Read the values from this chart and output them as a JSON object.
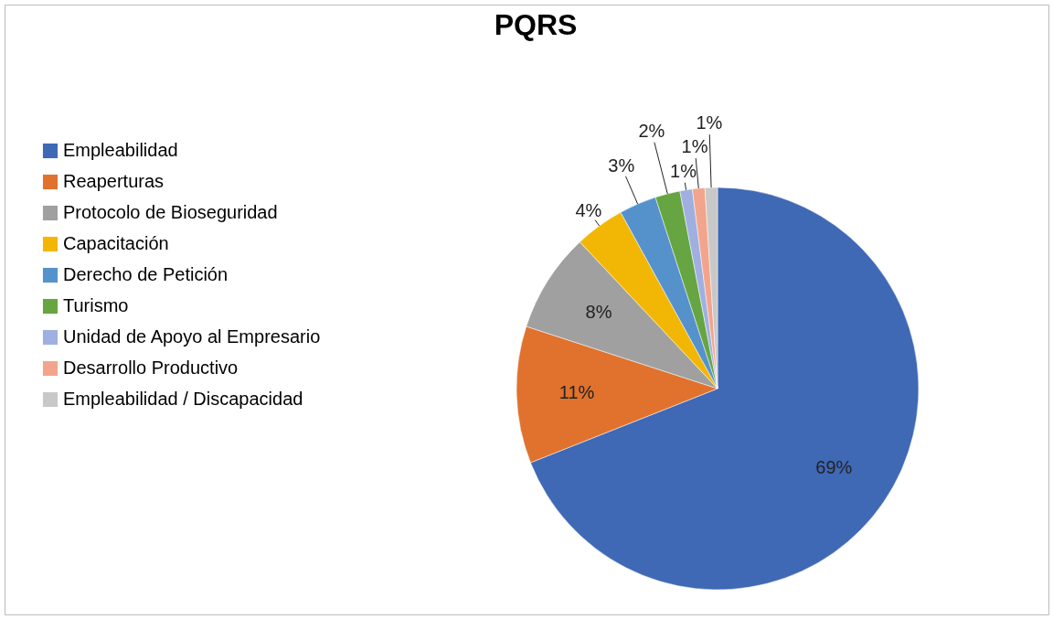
{
  "chart_data": {
    "type": "pie",
    "title": "PQRS",
    "categories": [
      "Empleabilidad",
      "Reaperturas",
      "Protocolo de Bioseguridad",
      "Capacitación",
      "Derecho de Petición",
      "Turismo",
      "Unidad de Apoyo al Empresario",
      "Desarrollo Productivo",
      "Empleabilidad / Discapacidad"
    ],
    "values": [
      69,
      11,
      8,
      4,
      3,
      2,
      1,
      1,
      1
    ],
    "value_labels": [
      "69%",
      "11%",
      "8%",
      "4%",
      "3%",
      "2%",
      "1%",
      "1%",
      "1%"
    ],
    "colors": [
      "#3f68b5",
      "#e0722d",
      "#a0a0a0",
      "#f2b705",
      "#5592cc",
      "#67a543",
      "#9fb0e0",
      "#f2a58c",
      "#c8c8c8"
    ],
    "legend": "left"
  }
}
